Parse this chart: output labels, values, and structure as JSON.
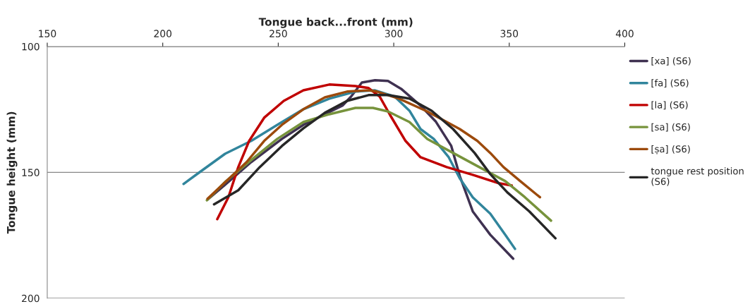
{
  "chart_data": {
    "type": "line",
    "xlabel": "Tongue back...front (mm)",
    "ylabel": "Tongue height (mm)",
    "xlim": [
      150,
      400
    ],
    "xticks": [
      150,
      200,
      250,
      300,
      350,
      400
    ],
    "ylim": [
      200,
      100
    ],
    "yticks": [
      100,
      150,
      200
    ],
    "grid": "y",
    "legend": "right",
    "marker": "none",
    "line_style": "solid",
    "series": [
      {
        "name": "[xa] (S6)",
        "color": "#3f3151",
        "x": [
          219.4,
          227.0,
          238.3,
          251.6,
          260.9,
          270.2,
          277.8,
          281.5,
          286.2,
          291.9,
          297.5,
          303.2,
          311.6,
          318.1,
          324.9,
          328.6,
          334.2,
          341.8,
          351.7
        ],
        "values": [
          160.8,
          154.9,
          145.9,
          136.7,
          131.1,
          126.9,
          123.5,
          119.9,
          114.3,
          113.4,
          113.7,
          116.8,
          123.5,
          129.7,
          139.5,
          151.5,
          165.5,
          174.8,
          184.3
        ]
      },
      {
        "name": "[fa] (S6)",
        "color": "#31859c",
        "x": [
          209.0,
          215.7,
          227.0,
          238.3,
          249.6,
          260.9,
          272.1,
          283.4,
          291.9,
          300.4,
          306.8,
          311.6,
          317.3,
          323.8,
          328.6,
          334.2,
          341.8,
          348.3,
          352.5
        ],
        "values": [
          154.6,
          150.1,
          142.6,
          137.5,
          131.1,
          124.9,
          120.7,
          117.9,
          117.4,
          119.9,
          125.5,
          132.8,
          136.7,
          144.0,
          152.4,
          159.9,
          166.4,
          174.8,
          180.4
        ]
      },
      {
        "name": "[la] (S6)",
        "color": "#c00000",
        "x": [
          223.6,
          228.4,
          232.7,
          237.4,
          243.9,
          252.4,
          260.9,
          272.1,
          283.4,
          289.1,
          293.9,
          298.4,
          305.1,
          311.6,
          322.9,
          334.2,
          345.5,
          351.1
        ],
        "values": [
          168.6,
          159.9,
          147.9,
          137.5,
          128.3,
          121.6,
          117.4,
          115.1,
          115.7,
          116.5,
          119.9,
          127.2,
          137.5,
          144.0,
          147.9,
          151.0,
          154.3,
          155.2
        ]
      },
      {
        "name": "[sa] (S6)",
        "color": "#77933c",
        "x": [
          219.1,
          227.0,
          238.3,
          249.6,
          260.9,
          272.1,
          283.4,
          291.0,
          297.5,
          306.8,
          314.5,
          325.7,
          337.0,
          348.3,
          356.8,
          368.1
        ],
        "values": [
          161.1,
          153.8,
          145.1,
          136.7,
          130.0,
          126.9,
          124.4,
          124.4,
          125.8,
          130.0,
          136.7,
          142.3,
          147.9,
          153.5,
          159.9,
          169.2
        ]
      },
      {
        "name": "[ṣa] (S6)",
        "color": "#9c4a0c",
        "x": [
          219.4,
          236.3,
          243.9,
          251.6,
          260.9,
          270.2,
          279.8,
          289.1,
          292.7,
          302.3,
          314.5,
          328.6,
          336.2,
          341.8,
          347.5,
          354.8,
          363.3
        ],
        "values": [
          160.5,
          145.9,
          137.5,
          131.1,
          124.9,
          120.2,
          117.9,
          117.4,
          117.9,
          120.7,
          125.8,
          132.8,
          137.5,
          142.3,
          147.9,
          153.5,
          159.9
        ]
      },
      {
        "name": "tongue rest position\n(S6)",
        "color": "#262626",
        "x": [
          222.2,
          232.7,
          242.0,
          251.6,
          260.9,
          270.2,
          279.8,
          289.1,
          297.5,
          306.8,
          316.4,
          325.7,
          335.0,
          341.8,
          349.2,
          358.7,
          370.0
        ],
        "values": [
          162.7,
          157.1,
          147.9,
          139.5,
          132.5,
          126.3,
          121.6,
          119.3,
          119.3,
          120.7,
          125.5,
          132.8,
          142.3,
          150.7,
          158.0,
          165.5,
          176.2
        ]
      }
    ]
  }
}
